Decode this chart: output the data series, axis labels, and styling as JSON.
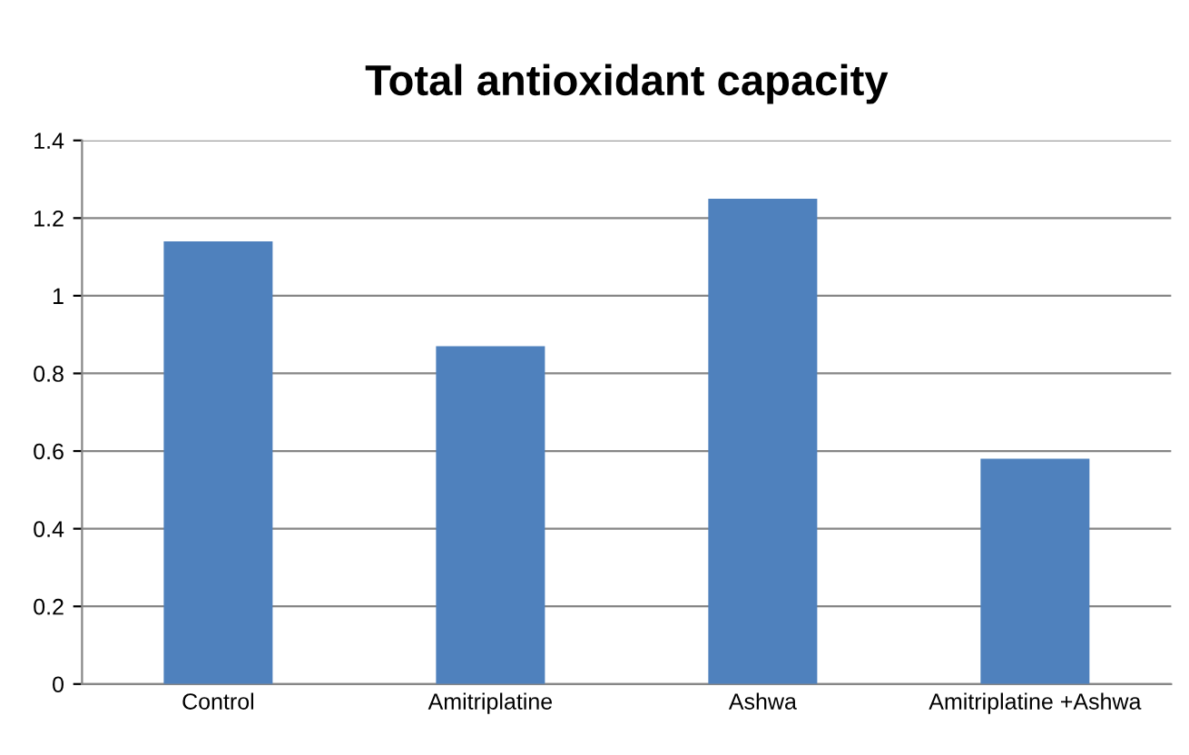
{
  "chart_data": {
    "type": "bar",
    "title": "Total antioxidant capacity",
    "categories": [
      "Control",
      "Amitriplatine",
      "Ashwa",
      "Amitriplatine +Ashwa"
    ],
    "values": [
      1.14,
      0.87,
      1.25,
      0.58
    ],
    "color": "#4f81bd",
    "ylim": [
      0,
      1.4
    ],
    "yticks": [
      0,
      {
        "value": 0.2,
        "label": "0.2"
      },
      {
        "value": 0.4,
        "label": "0.4"
      },
      {
        "value": 0.6,
        "label": "0.6"
      },
      {
        "value": 0.8,
        "label": "0.8"
      },
      1,
      {
        "value": 1.2,
        "label": "1.2"
      },
      {
        "value": 1.4,
        "label": "1.4"
      }
    ],
    "grid": "y"
  }
}
